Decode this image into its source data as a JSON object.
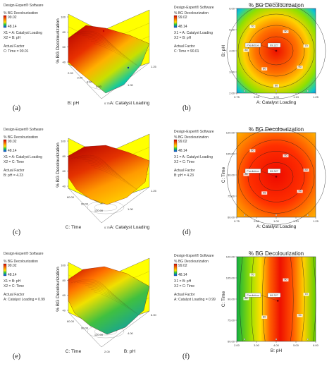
{
  "software_label": "Design-Expert® Software",
  "response_label": "% BG Decolourization",
  "colors": {
    "high": "#d40000",
    "mid": "#ffd800",
    "low": "#0044ff",
    "back": "#ffff00",
    "floor": "#ffffff"
  },
  "chart_data": [
    {
      "type": "surface3d",
      "panel_label": "(a)",
      "info": {
        "legend_high": "99.02",
        "legend_low": "48.14",
        "design_points": "",
        "x1": "X1 = A: Catalyst Loading",
        "x2": "X2 = B: pH",
        "actual_factor": "Actual Factor",
        "actual_factor_value": "C: Time = 90.01"
      },
      "zlabel": "% BG Decolourization",
      "xlabel": "A: Catalyst Loading",
      "ylabel": "B: pH",
      "z_ticks": [
        "40",
        "60",
        "80",
        "100"
      ],
      "x_ticks": [
        "0.75",
        "1.00",
        "1.25"
      ],
      "y_ticks": [
        "2.00",
        "3.00",
        "4.00",
        "5.00"
      ]
    },
    {
      "type": "contour",
      "panel_label": "(b)",
      "title": "% BG Decolourization",
      "xlabel": "A: Catalyst Loading",
      "ylabel": "B: pH",
      "x_ticks": [
        "0.75",
        "0.88",
        "1.00",
        "1.13",
        "1.25"
      ],
      "y_ticks": [
        "2.00",
        "3.00",
        "4.00",
        "5.00",
        "6.00"
      ],
      "contour_labels": [
        "70",
        "80",
        "90",
        "90",
        "80",
        "70",
        "60"
      ],
      "prediction_label": "Prediction",
      "prediction_value": "99.327",
      "center": [
        0.5,
        0.5
      ]
    },
    {
      "type": "surface3d",
      "panel_label": "(c)",
      "info": {
        "legend_high": "99.02",
        "legend_low": "48.14",
        "design_points": "",
        "x1": "X1 = A: Catalyst Loading",
        "x2": "X2 = C: Time",
        "actual_factor": "Actual Factor",
        "actual_factor_value": "B: pH = 4.23"
      },
      "zlabel": "% BG Decolourization",
      "xlabel": "A: Catalyst Loading",
      "ylabel": "C: Time",
      "z_ticks": [
        "40",
        "60",
        "80",
        "100"
      ],
      "x_ticks": [
        "0.75",
        "1.00",
        "1.25"
      ],
      "y_ticks": [
        "60.00",
        "90.00",
        "120.00"
      ]
    },
    {
      "type": "contour",
      "panel_label": "(d)",
      "title": "% BG Decolourization",
      "xlabel": "A: Catalyst Loading",
      "ylabel": "C: Time",
      "x_ticks": [
        "0.75",
        "0.88",
        "1.00",
        "1.13",
        "1.25"
      ],
      "y_ticks": [
        "60.00",
        "75.00",
        "90.00",
        "105.00",
        "120.00"
      ],
      "contour_labels": [
        "90",
        "95",
        "95",
        "90",
        "85",
        "80"
      ],
      "prediction_label": "Prediction",
      "prediction_value": "99.327",
      "center": [
        0.5,
        0.52
      ]
    },
    {
      "type": "surface3d",
      "panel_label": "(e)",
      "info": {
        "legend_high": "99.02",
        "legend_low": "48.14",
        "design_points": "",
        "x1": "X1 = B: pH",
        "x2": "X2 = C: Time",
        "actual_factor": "Actual Factor",
        "actual_factor_value": "A: Catalyst Loading = 0.99"
      },
      "zlabel": "% BG Decolourization",
      "xlabel": "B: pH",
      "ylabel": "C: Time",
      "z_ticks": [
        "40",
        "60",
        "80",
        "100"
      ],
      "x_ticks": [
        "2.00",
        "4.00",
        "6.00"
      ],
      "y_ticks": [
        "60.00",
        "90.00",
        "120.00"
      ]
    },
    {
      "type": "contour",
      "panel_label": "(f)",
      "title": "% BG Decolourization",
      "xlabel": "B: pH",
      "ylabel": "C: Time",
      "x_ticks": [
        "2.00",
        "3.00",
        "4.00",
        "5.00",
        "6.00"
      ],
      "y_ticks": [
        "60.00",
        "75.00",
        "90.00",
        "105.00",
        "120.00"
      ],
      "contour_labels": [
        "70",
        "80",
        "90",
        "90",
        "80",
        "70"
      ],
      "prediction_label": "Prediction",
      "prediction_value": "99.327",
      "center": [
        0.52,
        0.52
      ]
    }
  ]
}
